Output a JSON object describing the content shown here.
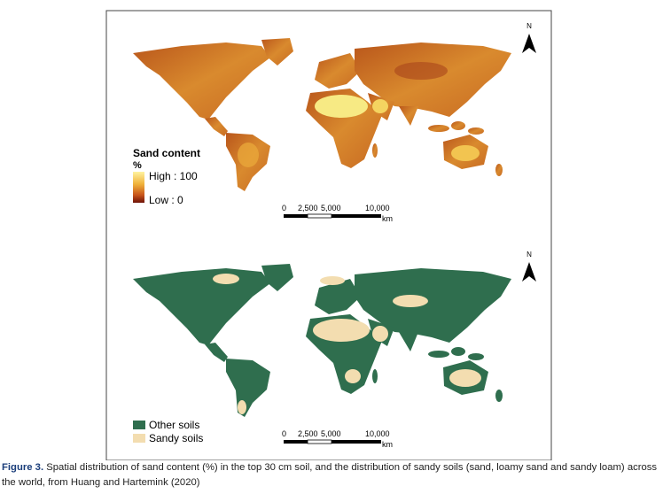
{
  "figure": {
    "top_map": {
      "legend_title": "Sand content",
      "legend_unit": "%",
      "legend_high": "High : 100",
      "legend_low": "Low : 0",
      "scale_labels": [
        "0",
        "2,500",
        "5,000",
        "10,000"
      ],
      "scale_unit": "km",
      "north": "N"
    },
    "bottom_map": {
      "legend": [
        "Other soils",
        "Sandy soils"
      ],
      "scale_labels": [
        "0",
        "2,500",
        "5,000",
        "10,000"
      ],
      "scale_unit": "km",
      "north": "N"
    },
    "caption": {
      "label": "Figure 3.",
      "text": "Spatial distribution of sand content (%) in the top 30 cm soil, and the distribution of sandy soils (sand, loamy sand and sandy loam) across the world, from Huang and Hartemink (2020)"
    }
  }
}
